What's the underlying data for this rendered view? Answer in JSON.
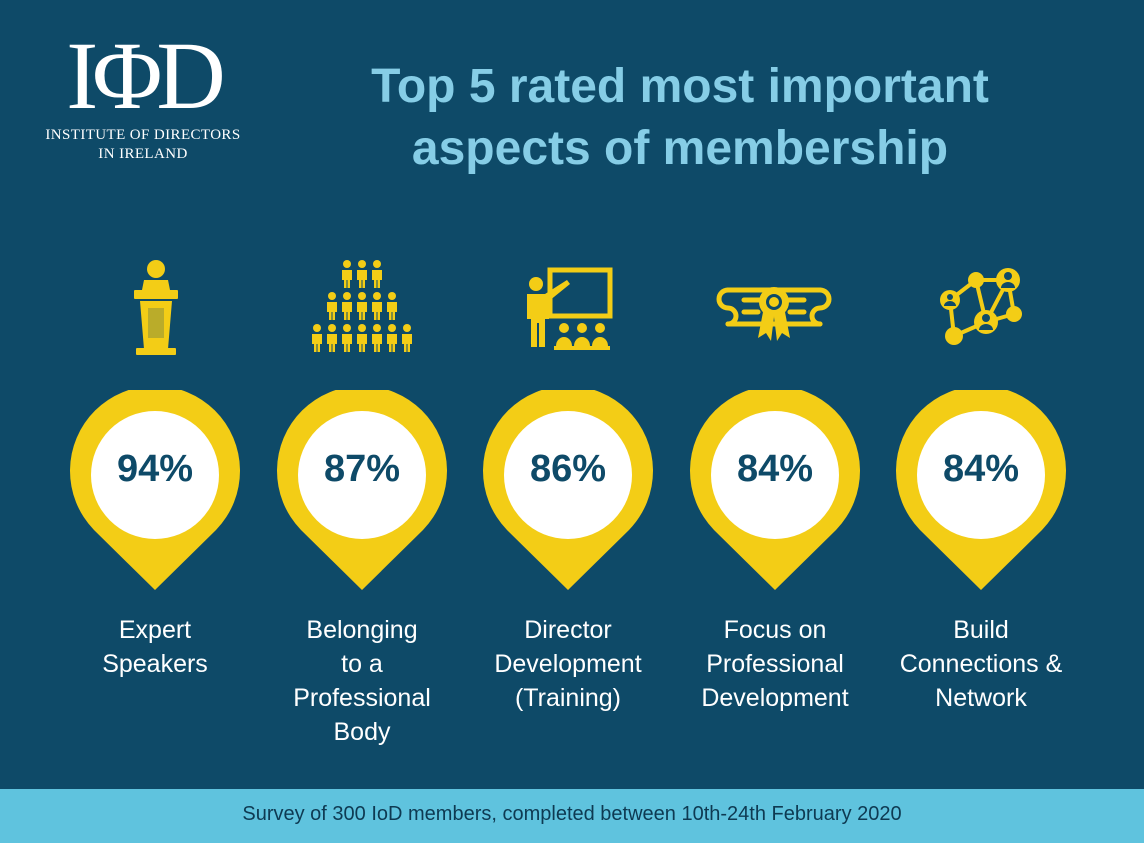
{
  "logo": {
    "mark": "IΦD",
    "line1": "INSTITUTE OF DIRECTORS",
    "line2": "IN IRELAND"
  },
  "header": {
    "title_line1": "Top 5 rated most important",
    "title_line2": "aspects of membership"
  },
  "colors": {
    "background": "#0e4a68",
    "accent_yellow": "#f3cd16",
    "title": "#86cde6",
    "footer": "#5fc3de"
  },
  "chart_data": {
    "type": "bar",
    "categories": [
      "Expert Speakers",
      "Belonging to a Professional Body",
      "Director Development (Training)",
      "Focus on Professional Development",
      "Build Connections & Network"
    ],
    "values": [
      94,
      87,
      86,
      84,
      84
    ],
    "title": "Top 5 rated most important aspects of membership",
    "unit": "%"
  },
  "items": [
    {
      "value_text": "94%",
      "label": "Expert\nSpeakers",
      "icon": "podium-icon"
    },
    {
      "value_text": "87%",
      "label": "Belonging\nto a\nProfessional\nBody",
      "icon": "people-pyramid-icon"
    },
    {
      "value_text": "86%",
      "label": "Director\nDevelopment\n(Training)",
      "icon": "presenter-training-icon"
    },
    {
      "value_text": "84%",
      "label": "Focus on\nProfessional\nDevelopment",
      "icon": "certificate-icon"
    },
    {
      "value_text": "84%",
      "label": "Build\nConnections &\nNetwork",
      "icon": "network-icon"
    }
  ],
  "footer": {
    "text": "Survey of 300 IoD members, completed between 10th-24th February 2020"
  }
}
